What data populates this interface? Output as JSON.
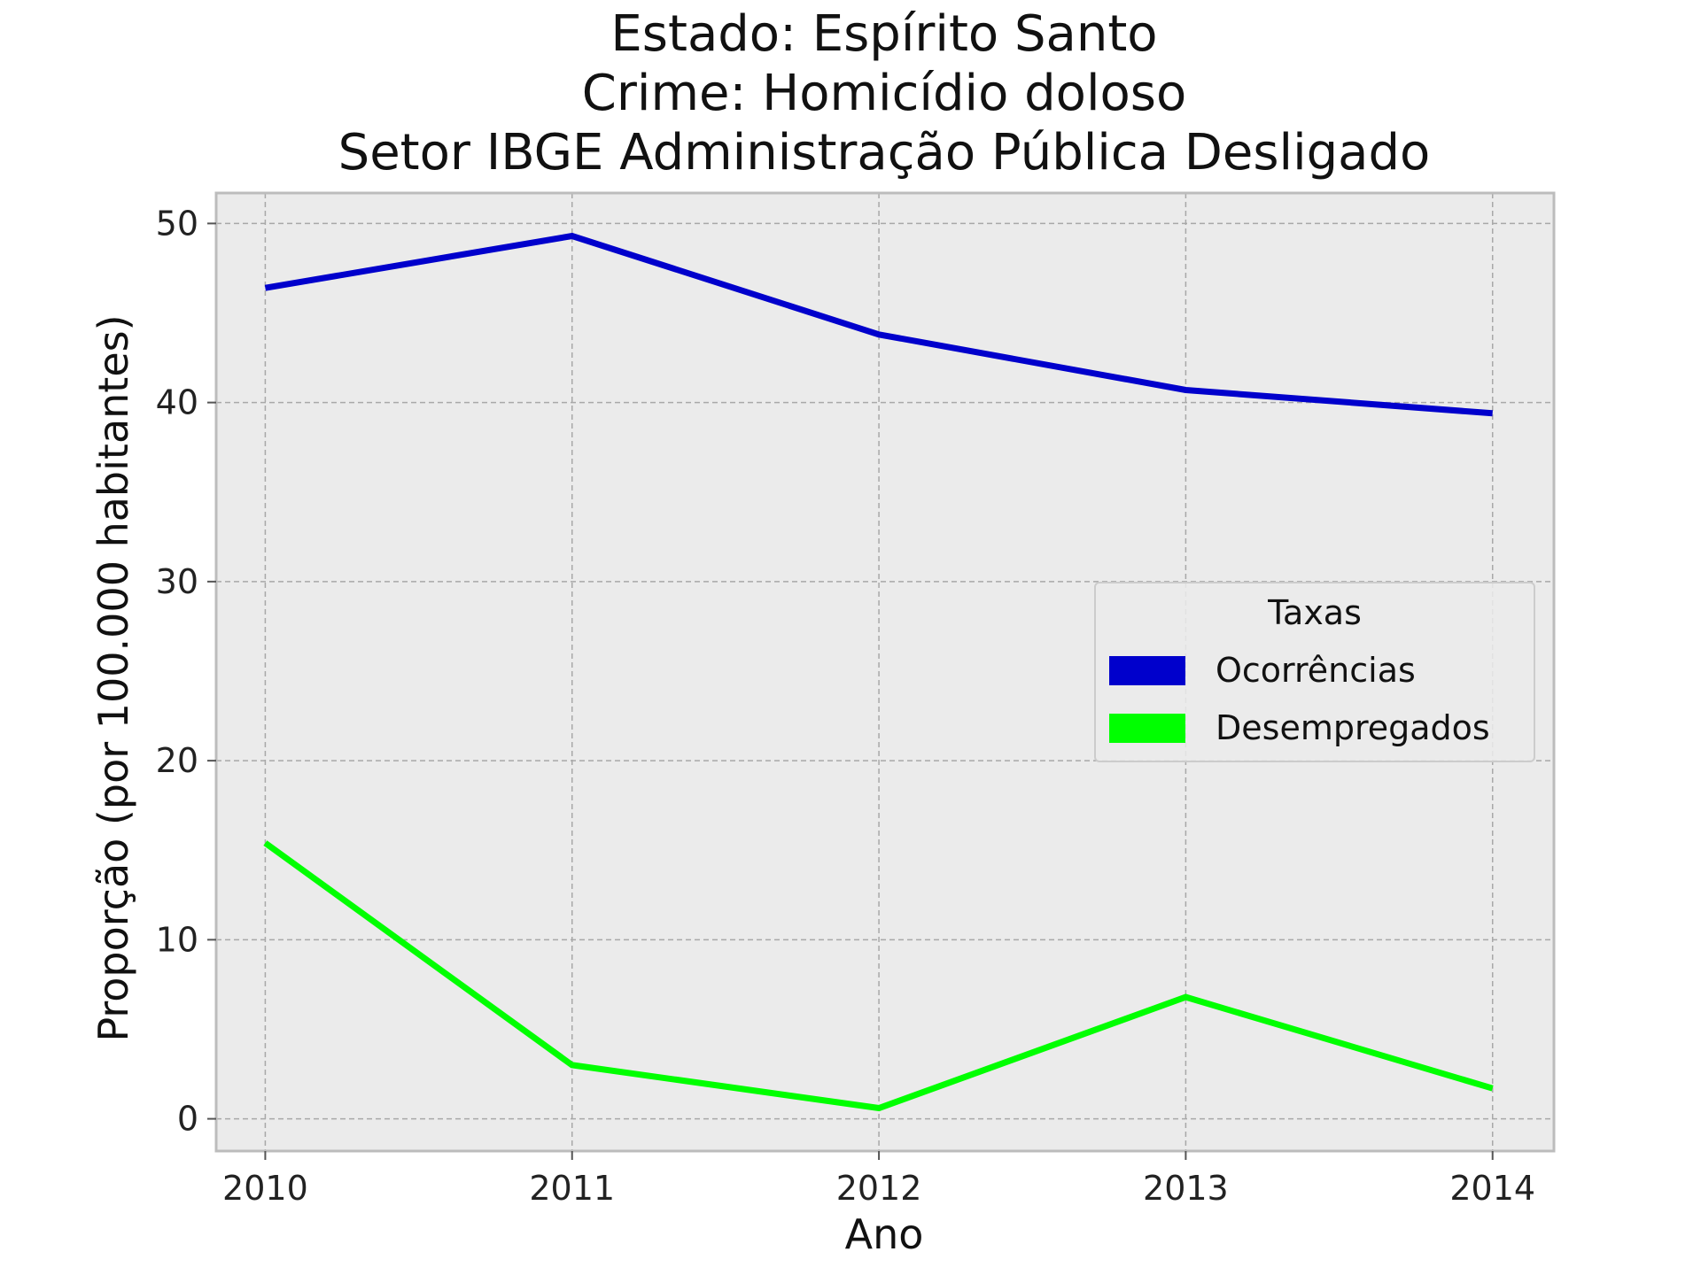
{
  "chart_data": {
    "type": "line",
    "title_lines": [
      "Estado: Espírito Santo",
      "Crime: Homicídio doloso",
      "Setor IBGE  Administração Pública   Desligado"
    ],
    "xlabel": "Ano",
    "ylabel": "Proporção (por 100.000 habitantes)",
    "x": [
      "2010",
      "2011",
      "2012",
      "2013",
      "2014"
    ],
    "xlim": [
      2009.84,
      2014.2
    ],
    "ylim": [
      -1.8,
      51.7
    ],
    "yticks": [
      "0",
      "10",
      "20",
      "30",
      "40",
      "50"
    ],
    "grid": true,
    "legend": {
      "title": "Taxas",
      "placement": "center-right"
    },
    "series": [
      {
        "name": "Ocorrências",
        "color": "#0000cc",
        "values": [
          46.4,
          49.3,
          43.8,
          40.7,
          39.4
        ]
      },
      {
        "name": "Desempregados",
        "color": "#00ff00",
        "values": [
          15.4,
          3.0,
          0.6,
          6.8,
          1.7
        ]
      }
    ]
  }
}
